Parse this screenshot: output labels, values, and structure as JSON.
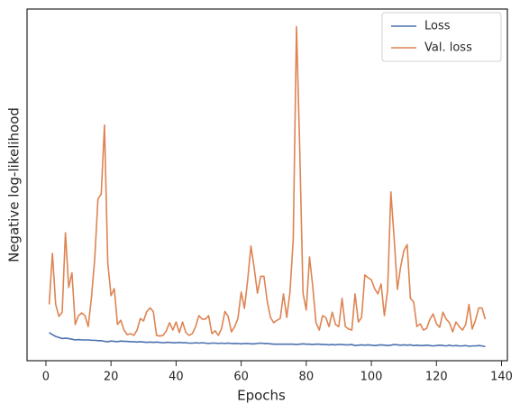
{
  "chart_data": {
    "type": "line",
    "xlabel": "Epochs",
    "ylabel": "Negative log-likelihood",
    "x": [
      1,
      2,
      3,
      4,
      5,
      6,
      7,
      8,
      9,
      10,
      11,
      12,
      13,
      14,
      15,
      16,
      17,
      18,
      19,
      20,
      21,
      22,
      23,
      24,
      25,
      26,
      27,
      28,
      29,
      30,
      31,
      32,
      33,
      34,
      35,
      36,
      37,
      38,
      39,
      40,
      41,
      42,
      43,
      44,
      45,
      46,
      47,
      48,
      49,
      50,
      51,
      52,
      53,
      54,
      55,
      56,
      57,
      58,
      59,
      60,
      61,
      62,
      63,
      64,
      65,
      66,
      67,
      68,
      69,
      70,
      71,
      72,
      73,
      74,
      75,
      76,
      77,
      78,
      79,
      80,
      81,
      82,
      83,
      84,
      85,
      86,
      87,
      88,
      89,
      90,
      91,
      92,
      93,
      94,
      95,
      96,
      97,
      98,
      99,
      100,
      101,
      102,
      103,
      104,
      105,
      106,
      107,
      108,
      109,
      110,
      111,
      112,
      113,
      114,
      115,
      116,
      117,
      118,
      119,
      120,
      121,
      122,
      123,
      124,
      125,
      126,
      127,
      128,
      129,
      130,
      131,
      132,
      133,
      134,
      135
    ],
    "series": [
      {
        "name": "Loss",
        "color": "#4c72b0",
        "values": [
          8.0,
          7.4,
          6.9,
          6.6,
          6.3,
          6.4,
          6.3,
          6.1,
          5.9,
          6.0,
          5.9,
          5.9,
          5.9,
          5.8,
          5.8,
          5.7,
          5.7,
          5.5,
          5.4,
          5.6,
          5.5,
          5.4,
          5.6,
          5.5,
          5.5,
          5.4,
          5.4,
          5.3,
          5.4,
          5.3,
          5.2,
          5.3,
          5.2,
          5.3,
          5.2,
          5.1,
          5.2,
          5.2,
          5.1,
          5.1,
          5.2,
          5.1,
          5.1,
          5.0,
          5.0,
          5.1,
          5.0,
          5.1,
          5.0,
          4.9,
          5.0,
          5.0,
          4.9,
          5.0,
          4.9,
          5.0,
          4.9,
          4.9,
          4.9,
          4.8,
          4.9,
          4.9,
          4.8,
          4.8,
          4.9,
          5.0,
          4.9,
          4.9,
          4.8,
          4.7,
          4.7,
          4.7,
          4.7,
          4.7,
          4.7,
          4.7,
          4.6,
          4.7,
          4.8,
          4.7,
          4.7,
          4.6,
          4.7,
          4.7,
          4.6,
          4.6,
          4.5,
          4.6,
          4.5,
          4.6,
          4.6,
          4.5,
          4.5,
          4.6,
          4.3,
          4.4,
          4.5,
          4.4,
          4.5,
          4.4,
          4.3,
          4.4,
          4.5,
          4.4,
          4.3,
          4.4,
          4.6,
          4.5,
          4.4,
          4.5,
          4.4,
          4.5,
          4.3,
          4.4,
          4.3,
          4.3,
          4.4,
          4.3,
          4.2,
          4.3,
          4.4,
          4.3,
          4.2,
          4.4,
          4.2,
          4.3,
          4.2,
          4.2,
          4.3,
          4.1,
          4.2,
          4.2,
          4.3,
          4.2,
          4.0
        ]
      },
      {
        "name": "Val. loss",
        "color": "#dd8452",
        "values": [
          16,
          30.5,
          16,
          12.6,
          13.8,
          36.4,
          20.8,
          25,
          10.3,
          12.8,
          13.6,
          12.8,
          9.7,
          18,
          29,
          46,
          47.4,
          67,
          28,
          18.5,
          20.5,
          10.3,
          11.5,
          8.7,
          7.4,
          7.7,
          7.2,
          8.7,
          12,
          11.3,
          14,
          15,
          14,
          7.2,
          7,
          7.2,
          8.5,
          10.8,
          8.7,
          11,
          8,
          11,
          8,
          7.2,
          7.7,
          9.7,
          12.8,
          11.8,
          11.8,
          12.8,
          7.7,
          8.5,
          7.2,
          9.2,
          14,
          12.6,
          8.2,
          9.7,
          12,
          19.5,
          14.9,
          23,
          32.6,
          26.4,
          19.2,
          24,
          24,
          17,
          12.3,
          10.8,
          11.5,
          12,
          19,
          12.3,
          19.5,
          34.6,
          95,
          60,
          19.2,
          14.4,
          29.5,
          21,
          10.8,
          8.7,
          12.8,
          12.3,
          9.7,
          13.8,
          10.3,
          9.7,
          17.7,
          9.7,
          9,
          8.7,
          19,
          11,
          12.3,
          24.4,
          23.6,
          23,
          20.5,
          19,
          21.8,
          12.8,
          20,
          48,
          34.9,
          20.3,
          26.7,
          31.3,
          33,
          17.7,
          16.7,
          9.7,
          10.5,
          8.7,
          9.2,
          11.8,
          13.3,
          10.5,
          9.5,
          13.8,
          11.8,
          10.8,
          8.2,
          11,
          9.7,
          8.7,
          10.3,
          16,
          9,
          11.5,
          15,
          15,
          11.8
        ]
      }
    ],
    "xlim": [
      -5.8,
      141.8
    ],
    "xticks": [
      0,
      20,
      40,
      60,
      80,
      100,
      120,
      140
    ],
    "ylim": [
      0,
      100
    ],
    "legend": "upper right"
  }
}
